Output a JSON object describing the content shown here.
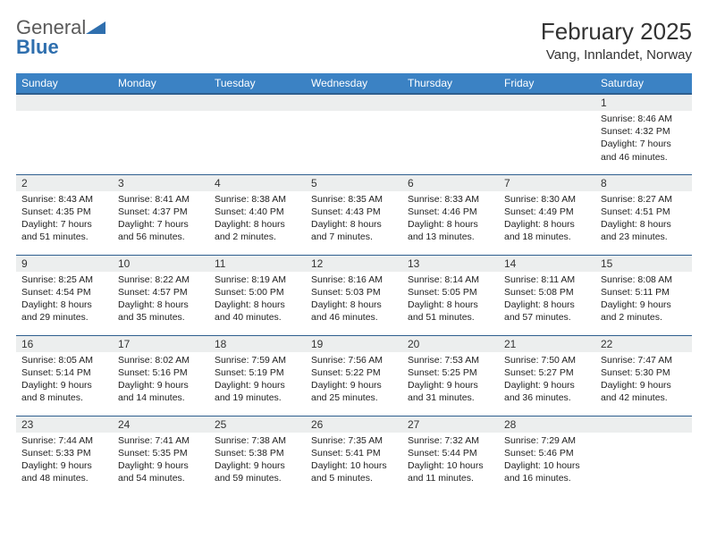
{
  "logo": {
    "word1": "General",
    "word2": "Blue"
  },
  "title": "February 2025",
  "location": "Vang, Innlandet, Norway",
  "colors": {
    "header_bg": "#3b82c4",
    "header_text": "#ffffff",
    "daynum_bg": "#eceeee",
    "border": "#2f5f8f",
    "logo_gray": "#5a5a5a",
    "logo_blue": "#2f6fae"
  },
  "weekdays": [
    "Sunday",
    "Monday",
    "Tuesday",
    "Wednesday",
    "Thursday",
    "Friday",
    "Saturday"
  ],
  "weeks": [
    [
      null,
      null,
      null,
      null,
      null,
      null,
      {
        "n": "1",
        "sr": "Sunrise: 8:46 AM",
        "ss": "Sunset: 4:32 PM",
        "dl": "Daylight: 7 hours and 46 minutes."
      }
    ],
    [
      {
        "n": "2",
        "sr": "Sunrise: 8:43 AM",
        "ss": "Sunset: 4:35 PM",
        "dl": "Daylight: 7 hours and 51 minutes."
      },
      {
        "n": "3",
        "sr": "Sunrise: 8:41 AM",
        "ss": "Sunset: 4:37 PM",
        "dl": "Daylight: 7 hours and 56 minutes."
      },
      {
        "n": "4",
        "sr": "Sunrise: 8:38 AM",
        "ss": "Sunset: 4:40 PM",
        "dl": "Daylight: 8 hours and 2 minutes."
      },
      {
        "n": "5",
        "sr": "Sunrise: 8:35 AM",
        "ss": "Sunset: 4:43 PM",
        "dl": "Daylight: 8 hours and 7 minutes."
      },
      {
        "n": "6",
        "sr": "Sunrise: 8:33 AM",
        "ss": "Sunset: 4:46 PM",
        "dl": "Daylight: 8 hours and 13 minutes."
      },
      {
        "n": "7",
        "sr": "Sunrise: 8:30 AM",
        "ss": "Sunset: 4:49 PM",
        "dl": "Daylight: 8 hours and 18 minutes."
      },
      {
        "n": "8",
        "sr": "Sunrise: 8:27 AM",
        "ss": "Sunset: 4:51 PM",
        "dl": "Daylight: 8 hours and 23 minutes."
      }
    ],
    [
      {
        "n": "9",
        "sr": "Sunrise: 8:25 AM",
        "ss": "Sunset: 4:54 PM",
        "dl": "Daylight: 8 hours and 29 minutes."
      },
      {
        "n": "10",
        "sr": "Sunrise: 8:22 AM",
        "ss": "Sunset: 4:57 PM",
        "dl": "Daylight: 8 hours and 35 minutes."
      },
      {
        "n": "11",
        "sr": "Sunrise: 8:19 AM",
        "ss": "Sunset: 5:00 PM",
        "dl": "Daylight: 8 hours and 40 minutes."
      },
      {
        "n": "12",
        "sr": "Sunrise: 8:16 AM",
        "ss": "Sunset: 5:03 PM",
        "dl": "Daylight: 8 hours and 46 minutes."
      },
      {
        "n": "13",
        "sr": "Sunrise: 8:14 AM",
        "ss": "Sunset: 5:05 PM",
        "dl": "Daylight: 8 hours and 51 minutes."
      },
      {
        "n": "14",
        "sr": "Sunrise: 8:11 AM",
        "ss": "Sunset: 5:08 PM",
        "dl": "Daylight: 8 hours and 57 minutes."
      },
      {
        "n": "15",
        "sr": "Sunrise: 8:08 AM",
        "ss": "Sunset: 5:11 PM",
        "dl": "Daylight: 9 hours and 2 minutes."
      }
    ],
    [
      {
        "n": "16",
        "sr": "Sunrise: 8:05 AM",
        "ss": "Sunset: 5:14 PM",
        "dl": "Daylight: 9 hours and 8 minutes."
      },
      {
        "n": "17",
        "sr": "Sunrise: 8:02 AM",
        "ss": "Sunset: 5:16 PM",
        "dl": "Daylight: 9 hours and 14 minutes."
      },
      {
        "n": "18",
        "sr": "Sunrise: 7:59 AM",
        "ss": "Sunset: 5:19 PM",
        "dl": "Daylight: 9 hours and 19 minutes."
      },
      {
        "n": "19",
        "sr": "Sunrise: 7:56 AM",
        "ss": "Sunset: 5:22 PM",
        "dl": "Daylight: 9 hours and 25 minutes."
      },
      {
        "n": "20",
        "sr": "Sunrise: 7:53 AM",
        "ss": "Sunset: 5:25 PM",
        "dl": "Daylight: 9 hours and 31 minutes."
      },
      {
        "n": "21",
        "sr": "Sunrise: 7:50 AM",
        "ss": "Sunset: 5:27 PM",
        "dl": "Daylight: 9 hours and 36 minutes."
      },
      {
        "n": "22",
        "sr": "Sunrise: 7:47 AM",
        "ss": "Sunset: 5:30 PM",
        "dl": "Daylight: 9 hours and 42 minutes."
      }
    ],
    [
      {
        "n": "23",
        "sr": "Sunrise: 7:44 AM",
        "ss": "Sunset: 5:33 PM",
        "dl": "Daylight: 9 hours and 48 minutes."
      },
      {
        "n": "24",
        "sr": "Sunrise: 7:41 AM",
        "ss": "Sunset: 5:35 PM",
        "dl": "Daylight: 9 hours and 54 minutes."
      },
      {
        "n": "25",
        "sr": "Sunrise: 7:38 AM",
        "ss": "Sunset: 5:38 PM",
        "dl": "Daylight: 9 hours and 59 minutes."
      },
      {
        "n": "26",
        "sr": "Sunrise: 7:35 AM",
        "ss": "Sunset: 5:41 PM",
        "dl": "Daylight: 10 hours and 5 minutes."
      },
      {
        "n": "27",
        "sr": "Sunrise: 7:32 AM",
        "ss": "Sunset: 5:44 PM",
        "dl": "Daylight: 10 hours and 11 minutes."
      },
      {
        "n": "28",
        "sr": "Sunrise: 7:29 AM",
        "ss": "Sunset: 5:46 PM",
        "dl": "Daylight: 10 hours and 16 minutes."
      },
      null
    ]
  ]
}
